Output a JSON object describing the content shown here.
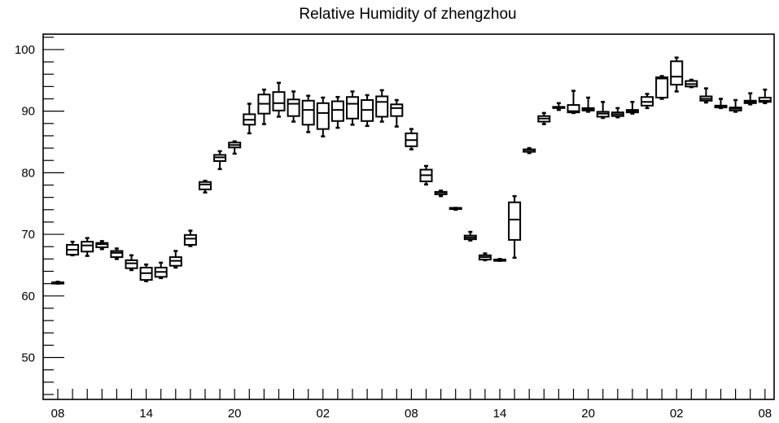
{
  "chart_data": {
    "type": "boxplot",
    "title": "Relative Humidity of zhengzhou",
    "xlabel": "",
    "ylabel": "",
    "ylim": [
      43.2,
      102.5
    ],
    "y_ticks": [
      50,
      60,
      70,
      80,
      90,
      100
    ],
    "x_tick_labels": [
      "08",
      "14",
      "20",
      "02",
      "08",
      "14",
      "20",
      "02",
      "08"
    ],
    "x_tick_label_positions": [
      0,
      6,
      12,
      18,
      24,
      30,
      36,
      42,
      48
    ],
    "grid": false,
    "legend": "none",
    "series": [
      {
        "boxes": [
          {
            "x": 0,
            "min": 62.0,
            "q1": 62.0,
            "median": 62.2,
            "q3": 62.2,
            "max": 62.3
          },
          {
            "x": 1,
            "min": 66.6,
            "q1": 66.7,
            "median": 67.5,
            "q3": 68.3,
            "max": 68.8
          },
          {
            "x": 2,
            "min": 66.5,
            "q1": 67.2,
            "median": 68.2,
            "q3": 68.8,
            "max": 69.4
          },
          {
            "x": 3,
            "min": 67.6,
            "q1": 67.9,
            "median": 68.4,
            "q3": 68.6,
            "max": 68.9
          },
          {
            "x": 4,
            "min": 66.0,
            "q1": 66.3,
            "median": 67.0,
            "q3": 67.3,
            "max": 67.7
          },
          {
            "x": 5,
            "min": 64.2,
            "q1": 64.5,
            "median": 65.3,
            "q3": 65.8,
            "max": 66.6
          },
          {
            "x": 6,
            "min": 62.4,
            "q1": 62.6,
            "median": 63.7,
            "q3": 64.6,
            "max": 65.1
          },
          {
            "x": 7,
            "min": 62.9,
            "q1": 63.1,
            "median": 63.9,
            "q3": 64.6,
            "max": 65.4
          },
          {
            "x": 8,
            "min": 64.6,
            "q1": 64.9,
            "median": 65.7,
            "q3": 66.3,
            "max": 67.3
          },
          {
            "x": 9,
            "min": 68.1,
            "q1": 68.3,
            "median": 69.3,
            "q3": 69.9,
            "max": 70.6
          },
          {
            "x": 10,
            "min": 76.8,
            "q1": 77.3,
            "median": 78.1,
            "q3": 78.5,
            "max": 78.7
          },
          {
            "x": 11,
            "min": 80.6,
            "q1": 81.9,
            "median": 82.5,
            "q3": 82.9,
            "max": 83.5
          },
          {
            "x": 12,
            "min": 83.1,
            "q1": 84.1,
            "median": 84.5,
            "q3": 84.9,
            "max": 85.1
          },
          {
            "x": 13,
            "min": 86.4,
            "q1": 87.8,
            "median": 88.6,
            "q3": 89.5,
            "max": 91.2
          },
          {
            "x": 14,
            "min": 87.9,
            "q1": 89.6,
            "median": 91.2,
            "q3": 92.7,
            "max": 93.5
          },
          {
            "x": 15,
            "min": 89.1,
            "q1": 90.1,
            "median": 91.3,
            "q3": 93.1,
            "max": 94.6
          },
          {
            "x": 16,
            "min": 88.3,
            "q1": 89.2,
            "median": 91.2,
            "q3": 91.9,
            "max": 93.2
          },
          {
            "x": 17,
            "min": 86.6,
            "q1": 87.8,
            "median": 90.2,
            "q3": 91.7,
            "max": 92.5
          },
          {
            "x": 18,
            "min": 85.9,
            "q1": 87.1,
            "median": 89.7,
            "q3": 91.3,
            "max": 92.2
          },
          {
            "x": 19,
            "min": 87.3,
            "q1": 88.4,
            "median": 90.2,
            "q3": 91.6,
            "max": 92.3
          },
          {
            "x": 20,
            "min": 87.8,
            "q1": 88.8,
            "median": 91.2,
            "q3": 92.3,
            "max": 93.2
          },
          {
            "x": 21,
            "min": 87.6,
            "q1": 88.4,
            "median": 90.2,
            "q3": 91.8,
            "max": 92.6
          },
          {
            "x": 22,
            "min": 88.3,
            "q1": 89.1,
            "median": 91.5,
            "q3": 92.4,
            "max": 93.4
          },
          {
            "x": 23,
            "min": 87.5,
            "q1": 89.2,
            "median": 90.5,
            "q3": 91.1,
            "max": 91.8
          },
          {
            "x": 24,
            "min": 83.8,
            "q1": 84.3,
            "median": 85.3,
            "q3": 86.4,
            "max": 87.1
          },
          {
            "x": 25,
            "min": 78.1,
            "q1": 78.6,
            "median": 79.6,
            "q3": 80.5,
            "max": 81.1
          },
          {
            "x": 26,
            "min": 76.2,
            "q1": 76.5,
            "median": 76.8,
            "q3": 76.9,
            "max": 77.1
          },
          {
            "x": 27,
            "min": 74.0,
            "q1": 74.1,
            "median": 74.2,
            "q3": 74.3,
            "max": 74.3
          },
          {
            "x": 28,
            "min": 69.0,
            "q1": 69.2,
            "median": 69.5,
            "q3": 69.8,
            "max": 70.4
          },
          {
            "x": 29,
            "min": 65.8,
            "q1": 65.9,
            "median": 66.3,
            "q3": 66.6,
            "max": 66.9
          },
          {
            "x": 30,
            "min": 65.7,
            "q1": 65.7,
            "median": 65.9,
            "q3": 65.9,
            "max": 66.0
          },
          {
            "x": 31,
            "min": 66.2,
            "q1": 69.1,
            "median": 72.4,
            "q3": 75.2,
            "max": 76.2
          },
          {
            "x": 32,
            "min": 83.2,
            "q1": 83.4,
            "median": 83.7,
            "q3": 83.8,
            "max": 84.0
          },
          {
            "x": 33,
            "min": 87.9,
            "q1": 88.3,
            "median": 88.8,
            "q3": 89.2,
            "max": 89.7
          },
          {
            "x": 34,
            "min": 90.2,
            "q1": 90.5,
            "median": 90.6,
            "q3": 90.7,
            "max": 91.3
          },
          {
            "x": 35,
            "min": 89.7,
            "q1": 89.8,
            "median": 90.0,
            "q3": 91.0,
            "max": 93.3
          },
          {
            "x": 36,
            "min": 89.9,
            "q1": 90.1,
            "median": 90.3,
            "q3": 90.5,
            "max": 92.2
          },
          {
            "x": 37,
            "min": 88.9,
            "q1": 89.1,
            "median": 89.6,
            "q3": 89.9,
            "max": 91.5
          },
          {
            "x": 38,
            "min": 89.0,
            "q1": 89.2,
            "median": 89.5,
            "q3": 89.8,
            "max": 90.5
          },
          {
            "x": 39,
            "min": 89.6,
            "q1": 89.8,
            "median": 90.0,
            "q3": 90.2,
            "max": 91.5
          },
          {
            "x": 40,
            "min": 90.5,
            "q1": 90.9,
            "median": 91.5,
            "q3": 92.3,
            "max": 92.8
          },
          {
            "x": 41,
            "min": 92.0,
            "q1": 92.2,
            "median": 95.3,
            "q3": 95.5,
            "max": 95.7
          },
          {
            "x": 42,
            "min": 93.2,
            "q1": 94.3,
            "median": 95.6,
            "q3": 98.1,
            "max": 98.7
          },
          {
            "x": 43,
            "min": 93.9,
            "q1": 94.0,
            "median": 94.4,
            "q3": 94.9,
            "max": 95.1
          },
          {
            "x": 44,
            "min": 91.4,
            "q1": 91.7,
            "median": 92.0,
            "q3": 92.4,
            "max": 93.7
          },
          {
            "x": 45,
            "min": 90.5,
            "q1": 90.6,
            "median": 90.8,
            "q3": 90.9,
            "max": 92.0
          },
          {
            "x": 46,
            "min": 89.9,
            "q1": 90.1,
            "median": 90.4,
            "q3": 90.6,
            "max": 91.8
          },
          {
            "x": 47,
            "min": 91.1,
            "q1": 91.3,
            "median": 91.5,
            "q3": 91.7,
            "max": 92.9
          },
          {
            "x": 48,
            "min": 91.3,
            "q1": 91.5,
            "median": 91.7,
            "q3": 92.2,
            "max": 93.5
          }
        ]
      }
    ]
  }
}
